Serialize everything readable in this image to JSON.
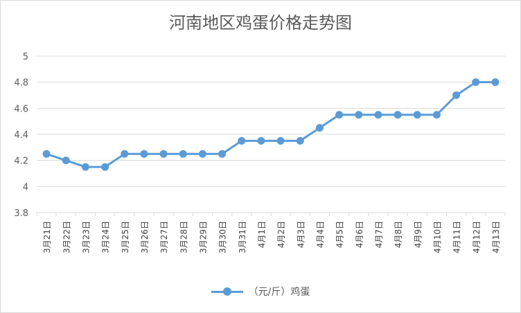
{
  "chart_data": {
    "type": "line",
    "title": "河南地区鸡蛋价格走势图",
    "categories": [
      "3月21日",
      "3月22日",
      "3月23日",
      "3月24日",
      "3月25日",
      "3月26日",
      "3月27日",
      "3月28日",
      "3月29日",
      "3月30日",
      "3月31日",
      "4月1日",
      "4月2日",
      "4月3日",
      "4月4日",
      "4月5日",
      "4月6日",
      "4月7日",
      "4月8日",
      "4月9日",
      "4月10日",
      "4月11日",
      "4月12日",
      "4月13日"
    ],
    "series": [
      {
        "name": "（元/斤）鸡蛋",
        "values": [
          4.25,
          4.2,
          4.15,
          4.15,
          4.25,
          4.25,
          4.25,
          4.25,
          4.25,
          4.25,
          4.35,
          4.35,
          4.35,
          4.35,
          4.45,
          4.55,
          4.55,
          4.55,
          4.55,
          4.55,
          4.55,
          4.7,
          4.8,
          4.8
        ]
      }
    ],
    "ylim": [
      3.8,
      5
    ],
    "yticks": [
      "3.8",
      "4",
      "4.2",
      "4.4",
      "4.6",
      "4.8",
      "5"
    ],
    "grid": true,
    "legend_position": "bottom",
    "color": "#5b9bd5"
  }
}
